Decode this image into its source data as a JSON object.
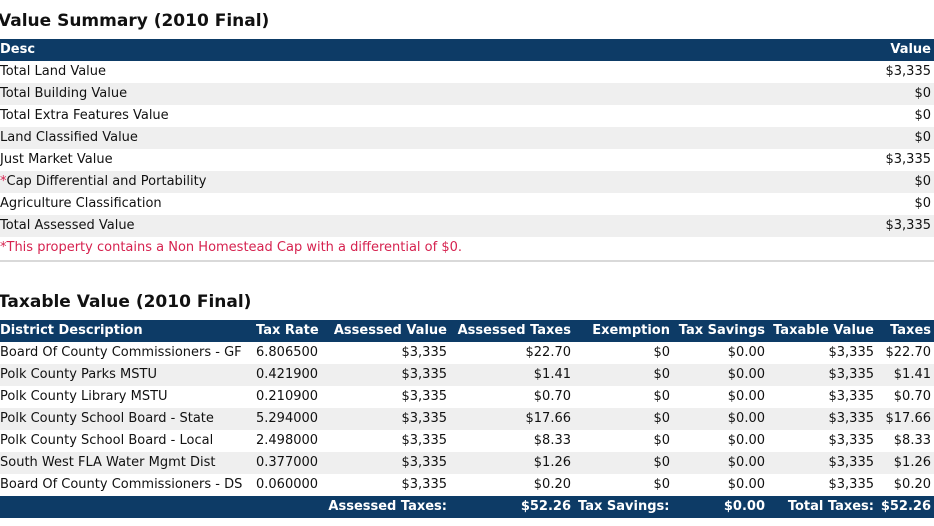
{
  "value_summary": {
    "title": "Value Summary (2010 Final)",
    "headers": {
      "desc": "Desc",
      "value": "Value"
    },
    "rows": [
      {
        "desc": "Total Land Value",
        "value": "$3,335"
      },
      {
        "desc": "Total Building Value",
        "value": "$0"
      },
      {
        "desc": "Total Extra Features Value",
        "value": "$0"
      },
      {
        "desc": "Land Classified Value",
        "value": "$0"
      },
      {
        "desc": "Just Market Value",
        "value": "$3,335"
      },
      {
        "desc": "Cap Differential and Portability",
        "value": "$0",
        "star": "*"
      },
      {
        "desc": "Agriculture Classification",
        "value": "$0"
      },
      {
        "desc": "Total Assessed Value",
        "value": "$3,335"
      }
    ],
    "note": "*This property contains a Non Homestead Cap with a differential of $0."
  },
  "taxable_value": {
    "title": "Taxable Value (2010 Final)",
    "headers": {
      "district": "District Description",
      "rate": "Tax Rate",
      "assessed_value": "Assessed Value",
      "assessed_taxes": "Assessed Taxes",
      "exemption": "Exemption",
      "tax_savings": "Tax Savings",
      "taxable_value": "Taxable Value",
      "taxes": "Taxes"
    },
    "rows": [
      {
        "district": "Board Of County Commissioners - GF",
        "rate": "6.806500",
        "assessed_value": "$3,335",
        "assessed_taxes": "$22.70",
        "exemption": "$0",
        "tax_savings": "$0.00",
        "taxable_value": "$3,335",
        "taxes": "$22.70"
      },
      {
        "district": "Polk County Parks MSTU",
        "rate": "0.421900",
        "assessed_value": "$3,335",
        "assessed_taxes": "$1.41",
        "exemption": "$0",
        "tax_savings": "$0.00",
        "taxable_value": "$3,335",
        "taxes": "$1.41"
      },
      {
        "district": "Polk County Library MSTU",
        "rate": "0.210900",
        "assessed_value": "$3,335",
        "assessed_taxes": "$0.70",
        "exemption": "$0",
        "tax_savings": "$0.00",
        "taxable_value": "$3,335",
        "taxes": "$0.70"
      },
      {
        "district": "Polk County School Board - State",
        "rate": "5.294000",
        "assessed_value": "$3,335",
        "assessed_taxes": "$17.66",
        "exemption": "$0",
        "tax_savings": "$0.00",
        "taxable_value": "$3,335",
        "taxes": "$17.66"
      },
      {
        "district": "Polk County School Board - Local",
        "rate": "2.498000",
        "assessed_value": "$3,335",
        "assessed_taxes": "$8.33",
        "exemption": "$0",
        "tax_savings": "$0.00",
        "taxable_value": "$3,335",
        "taxes": "$8.33"
      },
      {
        "district": "South West FLA Water Mgmt Dist",
        "rate": "0.377000",
        "assessed_value": "$3,335",
        "assessed_taxes": "$1.26",
        "exemption": "$0",
        "tax_savings": "$0.00",
        "taxable_value": "$3,335",
        "taxes": "$1.26"
      },
      {
        "district": "Board Of County Commissioners - DS",
        "rate": "0.060000",
        "assessed_value": "$3,335",
        "assessed_taxes": "$0.20",
        "exemption": "$0",
        "tax_savings": "$0.00",
        "taxable_value": "$3,335",
        "taxes": "$0.20"
      }
    ],
    "totals": {
      "assessed_taxes_label": "Assessed Taxes:",
      "assessed_taxes_value": "$52.26",
      "tax_savings_label": "Tax Savings:",
      "tax_savings_value": "$0.00",
      "total_taxes_label": "Total Taxes:",
      "total_taxes_value": "$52.26"
    }
  },
  "colors": {
    "header_bg": "#0d3b66",
    "alt_row": "#efefef",
    "note": "#d6224f"
  }
}
